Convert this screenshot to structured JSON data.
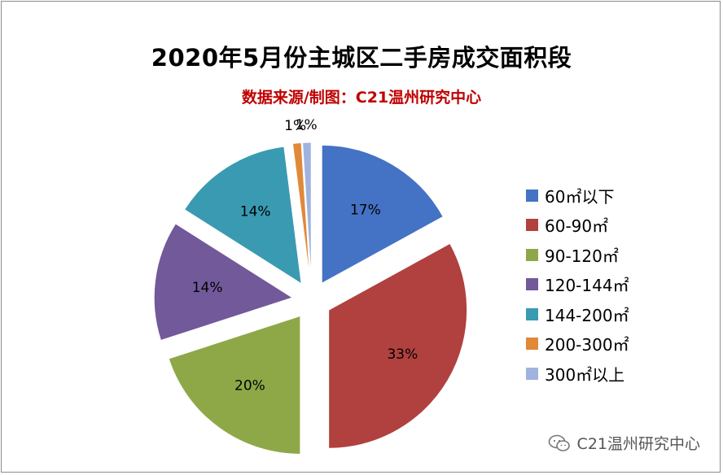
{
  "chart_data": {
    "type": "pie",
    "title": "2020年5月份主城区二手房成交面积段",
    "subtitle": "数据来源/制图：C21温州研究中心",
    "categories": [
      "60㎡以下",
      "60-90㎡",
      "90-120㎡",
      "120-144㎡",
      "144-200㎡",
      "200-300㎡",
      "300㎡以上"
    ],
    "values": [
      17,
      33,
      20,
      14,
      14,
      1,
      1
    ],
    "value_labels": [
      "17%",
      "33%",
      "20%",
      "14%",
      "14%",
      "1%",
      "1%"
    ],
    "colors": [
      "#4472c4",
      "#b0413e",
      "#8ea848",
      "#72599a",
      "#3a9ab2",
      "#e08937",
      "#9fb3de"
    ],
    "legend_position": "right",
    "exploded": true
  },
  "watermark": "C21温州研究中心"
}
